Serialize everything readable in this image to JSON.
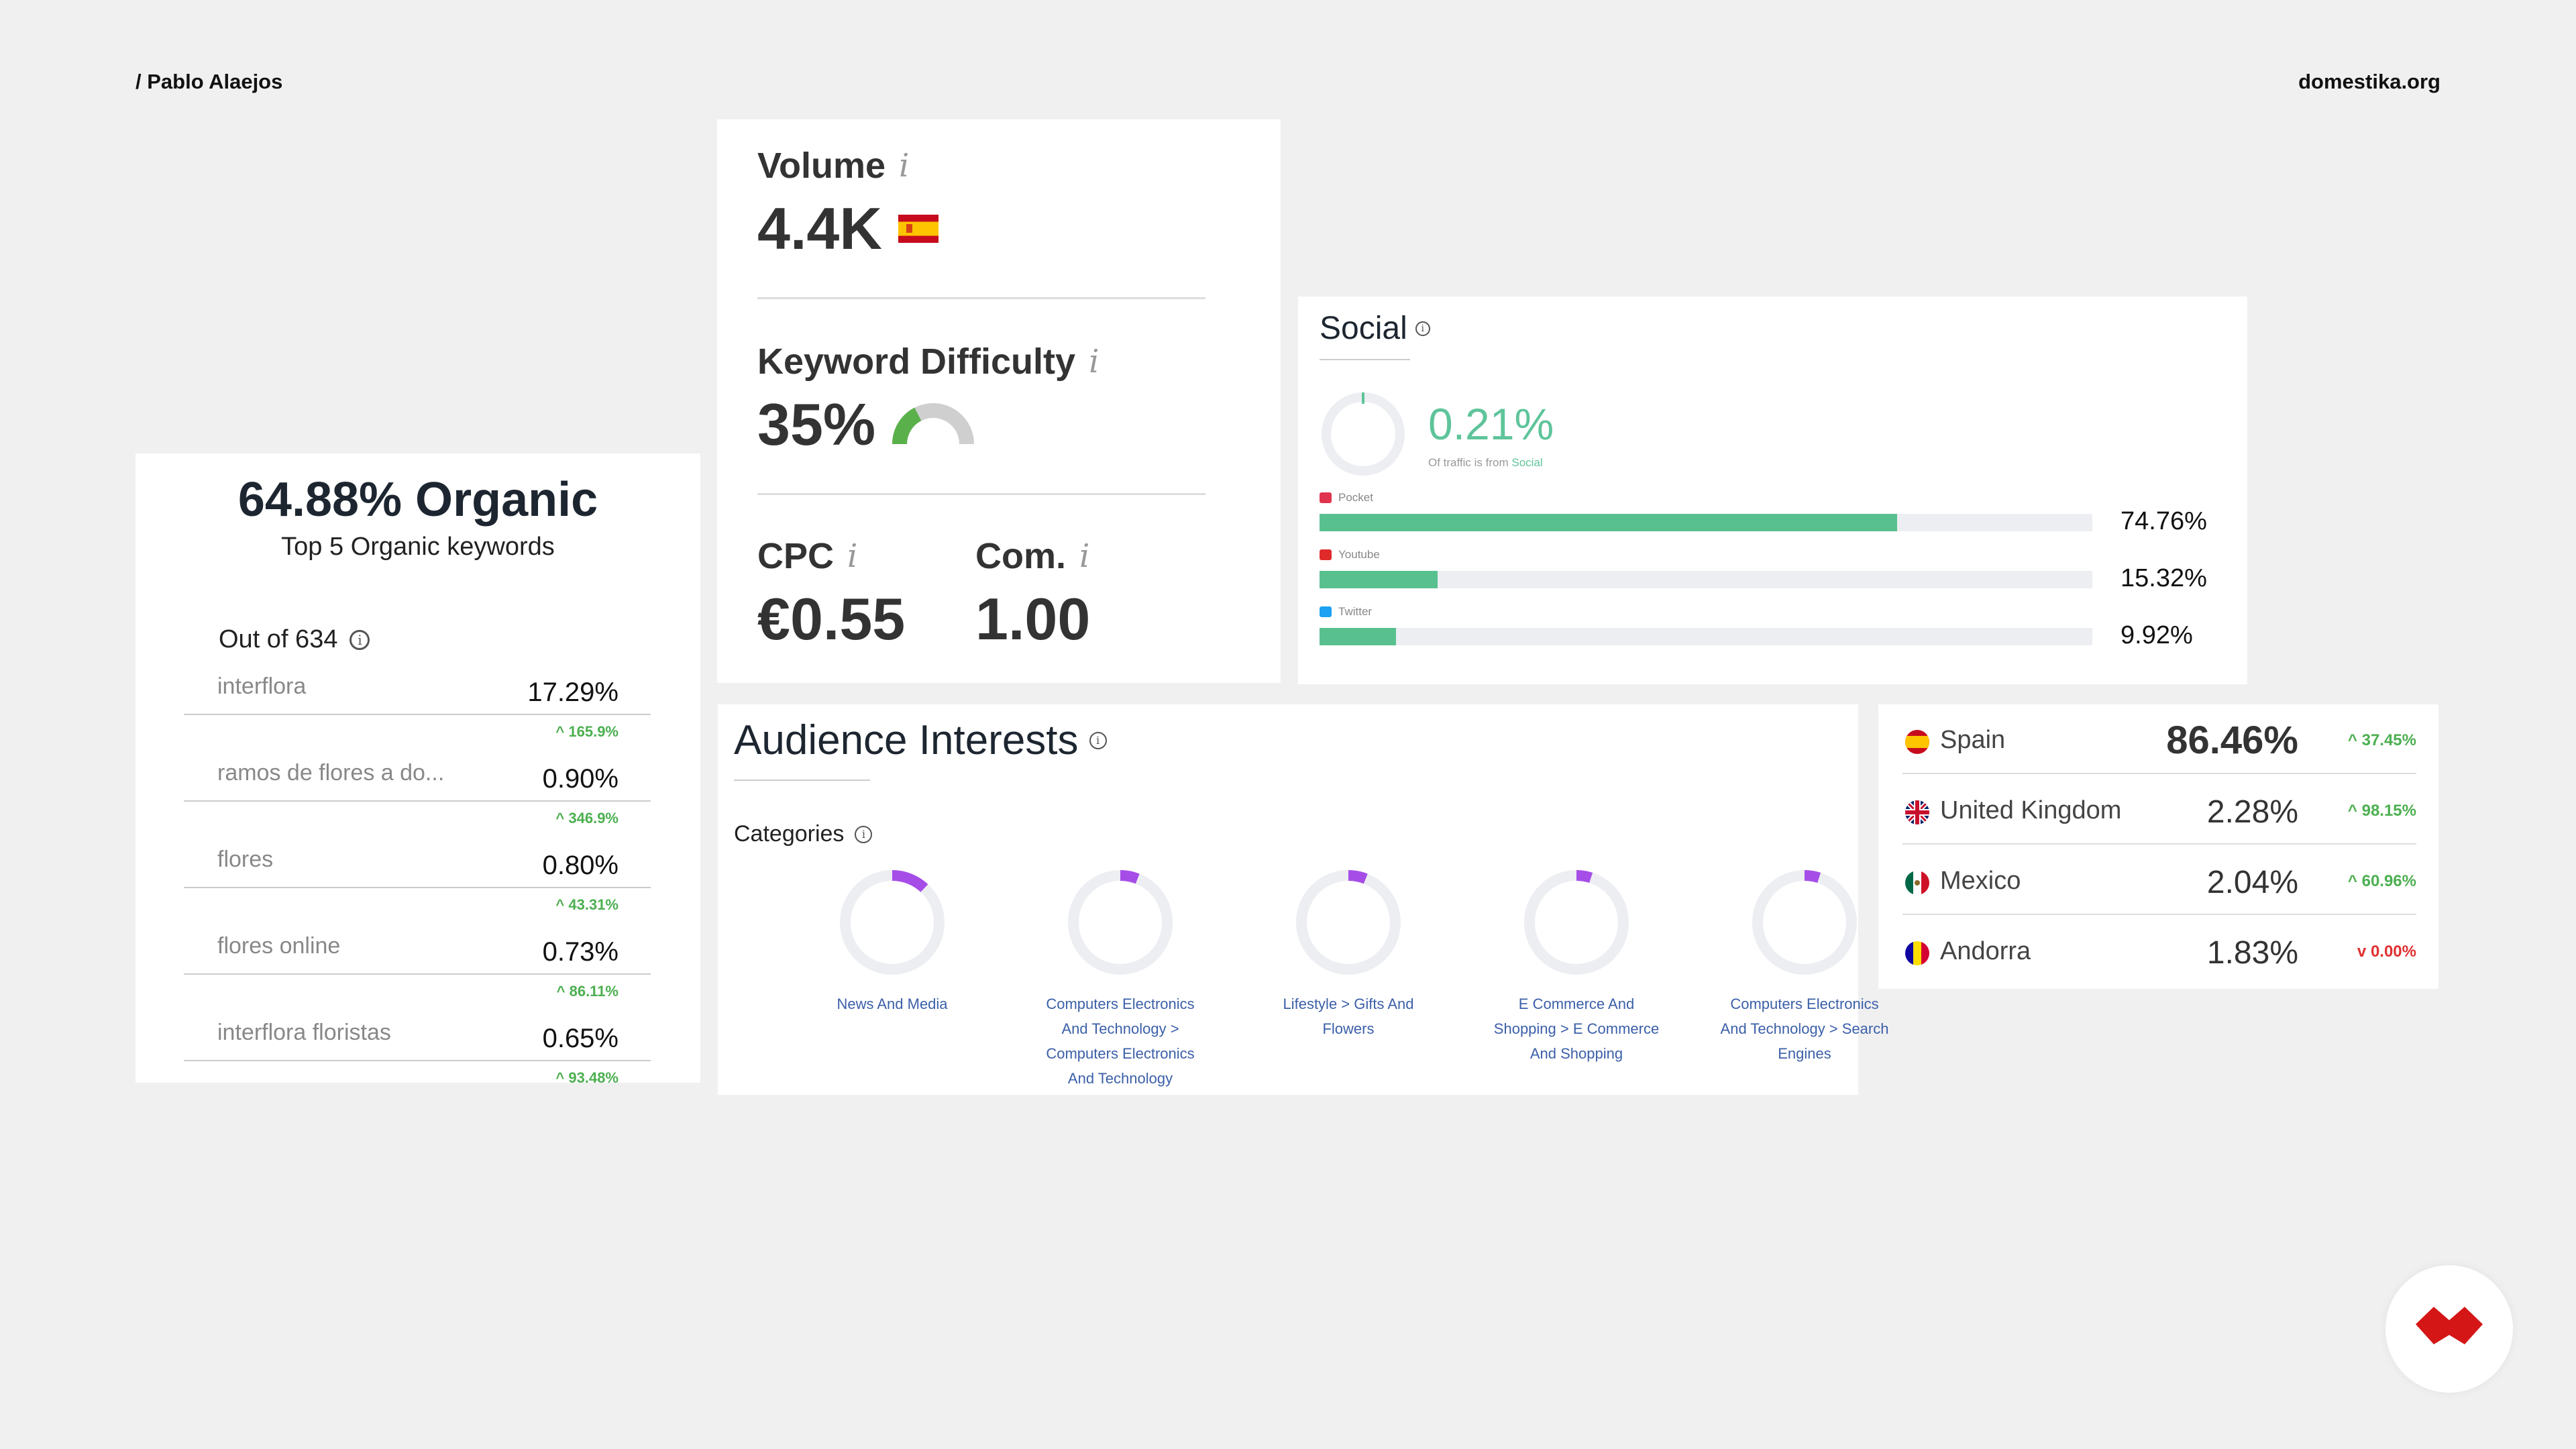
{
  "header": {
    "author": "/ Pablo Alaejos",
    "site": "domestika.org"
  },
  "organic": {
    "title": "64.88% Organic",
    "subtitle": "Top 5 Organic keywords",
    "out_of": "Out of 634",
    "keywords": [
      {
        "keyword": "interflora",
        "percent": "17.29%",
        "change": "165.9%"
      },
      {
        "keyword": "ramos de flores a do...",
        "percent": "0.90%",
        "change": "346.9%"
      },
      {
        "keyword": "flores",
        "percent": "0.80%",
        "change": "43.31%"
      },
      {
        "keyword": "flores online",
        "percent": "0.73%",
        "change": "86.11%"
      },
      {
        "keyword": "interflora floristas",
        "percent": "0.65%",
        "change": "93.48%"
      }
    ]
  },
  "metrics": {
    "volume_label": "Volume",
    "volume_value": "4.4K",
    "difficulty_label": "Keyword Difficulty",
    "difficulty_value": "35%",
    "difficulty_fraction": 0.35,
    "cpc_label": "CPC",
    "cpc_value": "€0.55",
    "com_label": "Com.",
    "com_value": "1.00",
    "info_glyph": "i"
  },
  "social": {
    "title": "Social",
    "percent": "0.21%",
    "note_prefix": "Of traffic is from",
    "note_source": "Social",
    "channels": [
      {
        "name": "Pocket",
        "value": "74.76%",
        "fraction": 0.7476,
        "icon": "pocket-icon"
      },
      {
        "name": "Youtube",
        "value": "15.32%",
        "fraction": 0.1532,
        "icon": "youtube-icon"
      },
      {
        "name": "Twitter",
        "value": "9.92%",
        "fraction": 0.0992,
        "icon": "twitter-icon"
      }
    ]
  },
  "audience": {
    "title": "Audience Interests",
    "categories_label": "Categories",
    "categories": [
      {
        "name": "News And Media",
        "fraction": 0.12
      },
      {
        "name": "Computers Electronics And Technology > Computers Electronics And Technology",
        "fraction": 0.06
      },
      {
        "name": "Lifestyle > Gifts And Flowers",
        "fraction": 0.06
      },
      {
        "name": "E Commerce And Shopping > E Commerce And Shopping",
        "fraction": 0.05
      },
      {
        "name": "Computers Electronics And Technology > Search Engines",
        "fraction": 0.05
      }
    ]
  },
  "countries": [
    {
      "name": "Spain",
      "percent": "86.46%",
      "change": "37.45%",
      "direction": "up"
    },
    {
      "name": "United Kingdom",
      "percent": "2.28%",
      "change": "98.15%",
      "direction": "up"
    },
    {
      "name": "Mexico",
      "percent": "2.04%",
      "change": "60.96%",
      "direction": "up"
    },
    {
      "name": "Andorra",
      "percent": "1.83%",
      "change": "0.00%",
      "direction": "down"
    }
  ],
  "colors": {
    "green": "#58c08f",
    "purple": "#a64de8",
    "link": "#3b5fa8",
    "up": "#4caf50",
    "down": "#e03030",
    "brand": "#d41616"
  }
}
